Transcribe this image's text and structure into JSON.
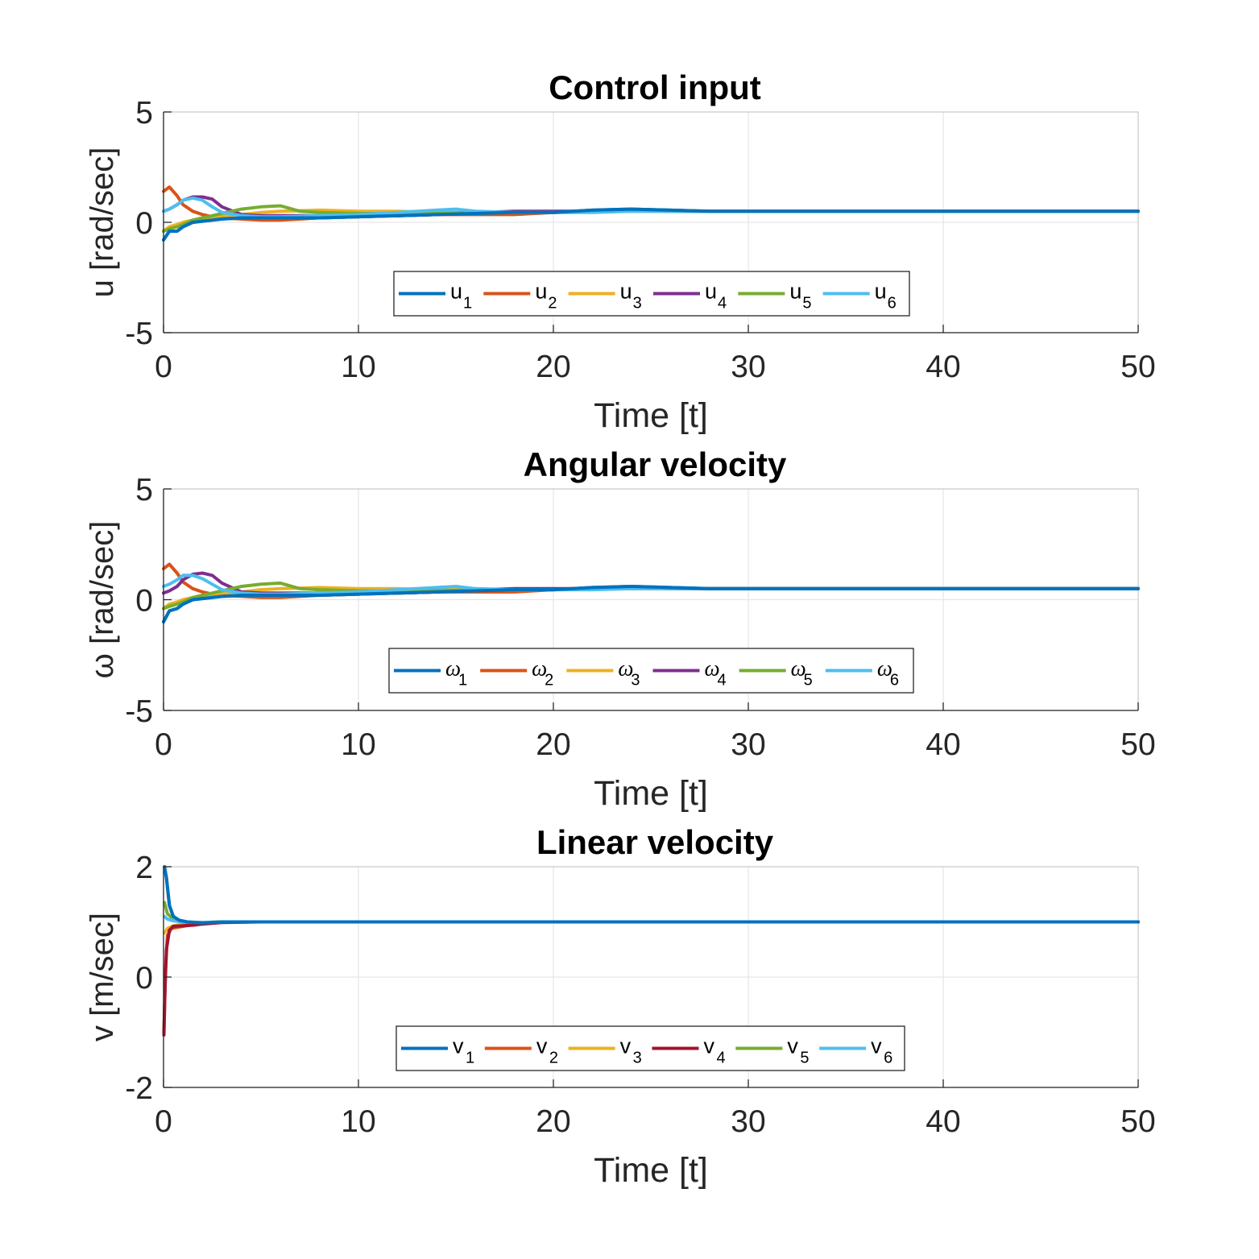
{
  "chart_data": [
    {
      "type": "line",
      "title": "Control input",
      "xlabel": "Time [t]",
      "ylabel": "u [rad/sec]",
      "xlim": [
        0,
        50
      ],
      "ylim": [
        -5,
        5
      ],
      "xticks": [
        "0",
        "10",
        "20",
        "30",
        "40",
        "50"
      ],
      "yticks": [
        "-5",
        "0",
        "5"
      ],
      "grid": true,
      "legend": {
        "placement": "bottom-center",
        "orientation": "horizontal"
      },
      "series": [
        {
          "name": "u",
          "sub": "1",
          "color": "#0072BD",
          "x": [
            0,
            0.3,
            0.7,
            1,
            1.5,
            2,
            2.5,
            3,
            4,
            5,
            6,
            8,
            10,
            12,
            14,
            16,
            18,
            20,
            22,
            24,
            26,
            28,
            30,
            35,
            40,
            45,
            50
          ],
          "y": [
            -0.8,
            -0.4,
            -0.4,
            -0.2,
            0,
            0.05,
            0.1,
            0.15,
            0.2,
            0.2,
            0.2,
            0.2,
            0.25,
            0.3,
            0.35,
            0.4,
            0.45,
            0.45,
            0.55,
            0.6,
            0.55,
            0.5,
            0.5,
            0.5,
            0.5,
            0.5,
            0.5
          ]
        },
        {
          "name": "u",
          "sub": "2",
          "color": "#D95319",
          "x": [
            0,
            0.3,
            0.7,
            1,
            1.5,
            2,
            2.5,
            3,
            4,
            5,
            6,
            8,
            10,
            12,
            14,
            16,
            18,
            20,
            22,
            24,
            26,
            28,
            30,
            35,
            40,
            45,
            50
          ],
          "y": [
            1.4,
            1.6,
            1.2,
            0.8,
            0.5,
            0.35,
            0.25,
            0.2,
            0.15,
            0.1,
            0.1,
            0.2,
            0.25,
            0.3,
            0.35,
            0.35,
            0.35,
            0.45,
            0.5,
            0.55,
            0.5,
            0.5,
            0.5,
            0.5,
            0.5,
            0.5,
            0.5
          ]
        },
        {
          "name": "u",
          "sub": "3",
          "color": "#EDB120",
          "x": [
            0,
            0.3,
            0.7,
            1,
            1.5,
            2,
            2.5,
            3,
            4,
            5,
            6,
            8,
            10,
            12,
            14,
            16,
            18,
            20,
            22,
            24,
            26,
            28,
            30,
            35,
            40,
            45,
            50
          ],
          "y": [
            -0.4,
            -0.2,
            -0.1,
            0,
            0.1,
            0.2,
            0.25,
            0.3,
            0.35,
            0.45,
            0.5,
            0.55,
            0.5,
            0.5,
            0.45,
            0.45,
            0.45,
            0.45,
            0.5,
            0.5,
            0.5,
            0.5,
            0.5,
            0.5,
            0.5,
            0.5,
            0.5
          ]
        },
        {
          "name": "u",
          "sub": "4",
          "color": "#7E2F8E",
          "x": [
            0,
            0.3,
            0.7,
            1,
            1.5,
            2,
            2.5,
            3,
            4,
            5,
            6,
            8,
            10,
            12,
            14,
            16,
            18,
            20,
            22,
            24,
            26,
            28,
            30,
            35,
            40,
            45,
            50
          ],
          "y": [
            0.5,
            0.6,
            0.8,
            1.0,
            1.15,
            1.15,
            1.05,
            0.7,
            0.35,
            0.3,
            0.3,
            0.3,
            0.3,
            0.3,
            0.35,
            0.45,
            0.5,
            0.5,
            0.5,
            0.55,
            0.5,
            0.5,
            0.5,
            0.5,
            0.5,
            0.5,
            0.5
          ]
        },
        {
          "name": "u",
          "sub": "5",
          "color": "#77AC30",
          "x": [
            0,
            0.3,
            0.7,
            1,
            1.5,
            2,
            2.5,
            3,
            4,
            5,
            6,
            7,
            8,
            10,
            12,
            14,
            16,
            18,
            20,
            22,
            24,
            26,
            28,
            30,
            35,
            40,
            45,
            50
          ],
          "y": [
            -0.4,
            -0.3,
            -0.2,
            -0.1,
            0.1,
            0.2,
            0.3,
            0.4,
            0.6,
            0.7,
            0.75,
            0.5,
            0.45,
            0.4,
            0.4,
            0.4,
            0.45,
            0.45,
            0.45,
            0.5,
            0.5,
            0.5,
            0.5,
            0.5,
            0.5,
            0.5,
            0.5,
            0.5
          ]
        },
        {
          "name": "u",
          "sub": "6",
          "color": "#4DBEEE",
          "x": [
            0,
            0.3,
            0.7,
            1,
            1.5,
            2,
            2.5,
            3,
            4,
            5,
            6,
            8,
            10,
            12,
            14,
            15,
            16,
            18,
            20,
            22,
            24,
            26,
            28,
            30,
            35,
            40,
            45,
            50
          ],
          "y": [
            0.5,
            0.6,
            0.8,
            1.0,
            1.1,
            1.0,
            0.7,
            0.45,
            0.3,
            0.25,
            0.25,
            0.3,
            0.35,
            0.45,
            0.55,
            0.6,
            0.5,
            0.45,
            0.45,
            0.45,
            0.5,
            0.5,
            0.5,
            0.5,
            0.5,
            0.5,
            0.5,
            0.5
          ]
        }
      ]
    },
    {
      "type": "line",
      "title": "Angular velocity",
      "xlabel": "Time [t]",
      "ylabel": "ω [rad/sec]",
      "xlim": [
        0,
        50
      ],
      "ylim": [
        -5,
        5
      ],
      "xticks": [
        "0",
        "10",
        "20",
        "30",
        "40",
        "50"
      ],
      "yticks": [
        "-5",
        "0",
        "5"
      ],
      "grid": true,
      "legend": {
        "placement": "bottom-center",
        "orientation": "horizontal"
      },
      "series": [
        {
          "name": "ω",
          "sub": "1",
          "color": "#0072BD",
          "x": [
            0,
            0.3,
            0.7,
            1,
            1.5,
            2,
            2.5,
            3,
            4,
            5,
            6,
            8,
            10,
            12,
            14,
            16,
            18,
            20,
            22,
            24,
            26,
            28,
            30,
            35,
            40,
            45,
            50
          ],
          "y": [
            -1.0,
            -0.5,
            -0.4,
            -0.2,
            0,
            0.05,
            0.1,
            0.15,
            0.2,
            0.2,
            0.2,
            0.2,
            0.25,
            0.3,
            0.35,
            0.4,
            0.45,
            0.45,
            0.55,
            0.6,
            0.55,
            0.5,
            0.5,
            0.5,
            0.5,
            0.5,
            0.5
          ]
        },
        {
          "name": "ω",
          "sub": "2",
          "color": "#D95319",
          "x": [
            0,
            0.3,
            0.7,
            1,
            1.5,
            2,
            2.5,
            3,
            4,
            5,
            6,
            8,
            10,
            12,
            14,
            16,
            18,
            20,
            22,
            24,
            26,
            28,
            30,
            35,
            40,
            45,
            50
          ],
          "y": [
            1.4,
            1.6,
            1.2,
            0.8,
            0.5,
            0.35,
            0.25,
            0.2,
            0.15,
            0.1,
            0.1,
            0.2,
            0.25,
            0.3,
            0.35,
            0.35,
            0.35,
            0.45,
            0.5,
            0.55,
            0.5,
            0.5,
            0.5,
            0.5,
            0.5,
            0.5,
            0.5
          ]
        },
        {
          "name": "ω",
          "sub": "3",
          "color": "#EDB120",
          "x": [
            0,
            0.3,
            0.7,
            1,
            1.5,
            2,
            2.5,
            3,
            4,
            5,
            6,
            8,
            10,
            12,
            14,
            16,
            18,
            20,
            22,
            24,
            26,
            28,
            30,
            35,
            40,
            45,
            50
          ],
          "y": [
            -0.4,
            -0.2,
            -0.1,
            0,
            0.1,
            0.2,
            0.25,
            0.3,
            0.35,
            0.45,
            0.5,
            0.55,
            0.5,
            0.5,
            0.45,
            0.45,
            0.45,
            0.45,
            0.5,
            0.5,
            0.5,
            0.5,
            0.5,
            0.5,
            0.5,
            0.5,
            0.5
          ]
        },
        {
          "name": "ω",
          "sub": "4",
          "color": "#7E2F8E",
          "x": [
            0,
            0.3,
            0.7,
            1,
            1.5,
            2,
            2.5,
            3,
            4,
            5,
            6,
            8,
            10,
            12,
            14,
            16,
            18,
            20,
            22,
            24,
            26,
            28,
            30,
            35,
            40,
            45,
            50
          ],
          "y": [
            0.3,
            0.4,
            0.6,
            0.9,
            1.15,
            1.2,
            1.1,
            0.75,
            0.35,
            0.3,
            0.3,
            0.3,
            0.3,
            0.3,
            0.35,
            0.45,
            0.5,
            0.5,
            0.5,
            0.55,
            0.5,
            0.5,
            0.5,
            0.5,
            0.5,
            0.5,
            0.5
          ]
        },
        {
          "name": "ω",
          "sub": "5",
          "color": "#77AC30",
          "x": [
            0,
            0.3,
            0.7,
            1,
            1.5,
            2,
            2.5,
            3,
            4,
            5,
            6,
            7,
            8,
            10,
            12,
            14,
            16,
            18,
            20,
            22,
            24,
            26,
            28,
            30,
            35,
            40,
            45,
            50
          ],
          "y": [
            -0.4,
            -0.3,
            -0.2,
            -0.1,
            0.1,
            0.2,
            0.3,
            0.4,
            0.6,
            0.7,
            0.75,
            0.5,
            0.45,
            0.4,
            0.4,
            0.4,
            0.45,
            0.45,
            0.45,
            0.5,
            0.5,
            0.5,
            0.5,
            0.5,
            0.5,
            0.5,
            0.5,
            0.5
          ]
        },
        {
          "name": "ω",
          "sub": "6",
          "color": "#4DBEEE",
          "x": [
            0,
            0.3,
            0.7,
            1,
            1.5,
            2,
            2.5,
            3,
            4,
            5,
            6,
            8,
            10,
            12,
            14,
            15,
            16,
            18,
            20,
            22,
            24,
            26,
            28,
            30,
            35,
            40,
            45,
            50
          ],
          "y": [
            0.6,
            0.7,
            0.9,
            1.1,
            1.1,
            0.95,
            0.7,
            0.45,
            0.3,
            0.25,
            0.25,
            0.3,
            0.35,
            0.45,
            0.55,
            0.6,
            0.5,
            0.45,
            0.45,
            0.45,
            0.5,
            0.5,
            0.5,
            0.5,
            0.5,
            0.5,
            0.5,
            0.5
          ]
        }
      ]
    },
    {
      "type": "line",
      "title": "Linear velocity",
      "xlabel": "Time [t]",
      "ylabel": "v [m/sec]",
      "xlim": [
        0,
        50
      ],
      "ylim": [
        -2,
        2
      ],
      "xticks": [
        "0",
        "10",
        "20",
        "30",
        "40",
        "50"
      ],
      "yticks": [
        "-2",
        "0",
        "2"
      ],
      "grid": true,
      "legend": {
        "placement": "bottom-center",
        "orientation": "horizontal"
      },
      "series": [
        {
          "name": "v",
          "sub": "1",
          "color": "#0072BD",
          "x": [
            0.05,
            0.15,
            0.3,
            0.5,
            0.8,
            1.2,
            2,
            3,
            5,
            10,
            20,
            30,
            40,
            50
          ],
          "y": [
            2.0,
            1.8,
            1.3,
            1.1,
            1.03,
            1.0,
            0.98,
            1.0,
            1.0,
            1.0,
            1.0,
            1.0,
            1.0,
            1.0
          ]
        },
        {
          "name": "v",
          "sub": "2",
          "color": "#D95319",
          "x": [
            0.02,
            0.1,
            0.2,
            0.4,
            0.7,
            1,
            1.5,
            2,
            3,
            5,
            10,
            20,
            30,
            40,
            50
          ],
          "y": [
            -1.0,
            0.1,
            0.75,
            0.88,
            0.9,
            0.92,
            0.95,
            0.98,
            1.0,
            1.0,
            1.0,
            1.0,
            1.0,
            1.0,
            1.0
          ]
        },
        {
          "name": "v",
          "sub": "3",
          "color": "#EDB120",
          "x": [
            0.05,
            0.2,
            0.5,
            1,
            2,
            3,
            5,
            10,
            20,
            30,
            40,
            50
          ],
          "y": [
            0.8,
            0.88,
            0.93,
            0.96,
            0.98,
            1.0,
            1.0,
            1.0,
            1.0,
            1.0,
            1.0,
            1.0
          ]
        },
        {
          "name": "v",
          "sub": "4",
          "color": "#A2142F",
          "x": [
            0.02,
            0.08,
            0.15,
            0.3,
            0.5,
            1,
            1.5,
            2,
            3,
            5,
            10,
            20,
            30,
            40,
            50
          ],
          "y": [
            -1.05,
            -0.2,
            0.5,
            0.85,
            0.92,
            0.93,
            0.94,
            0.96,
            0.99,
            1.0,
            1.0,
            1.0,
            1.0,
            1.0,
            1.0
          ]
        },
        {
          "name": "v",
          "sub": "5",
          "color": "#77AC30",
          "x": [
            0.05,
            0.2,
            0.5,
            1,
            2,
            3,
            5,
            10,
            20,
            30,
            40,
            50
          ],
          "y": [
            1.35,
            1.15,
            1.05,
            1.0,
            0.99,
            1.0,
            1.0,
            1.0,
            1.0,
            1.0,
            1.0,
            1.0
          ]
        },
        {
          "name": "v",
          "sub": "6",
          "color": "#4DBEEE",
          "x": [
            0.05,
            0.2,
            0.5,
            1,
            2,
            3,
            5,
            10,
            20,
            30,
            40,
            50
          ],
          "y": [
            1.1,
            1.05,
            1.02,
            1.0,
            0.99,
            1.0,
            1.0,
            1.0,
            1.0,
            1.0,
            1.0,
            1.0
          ]
        }
      ]
    }
  ]
}
